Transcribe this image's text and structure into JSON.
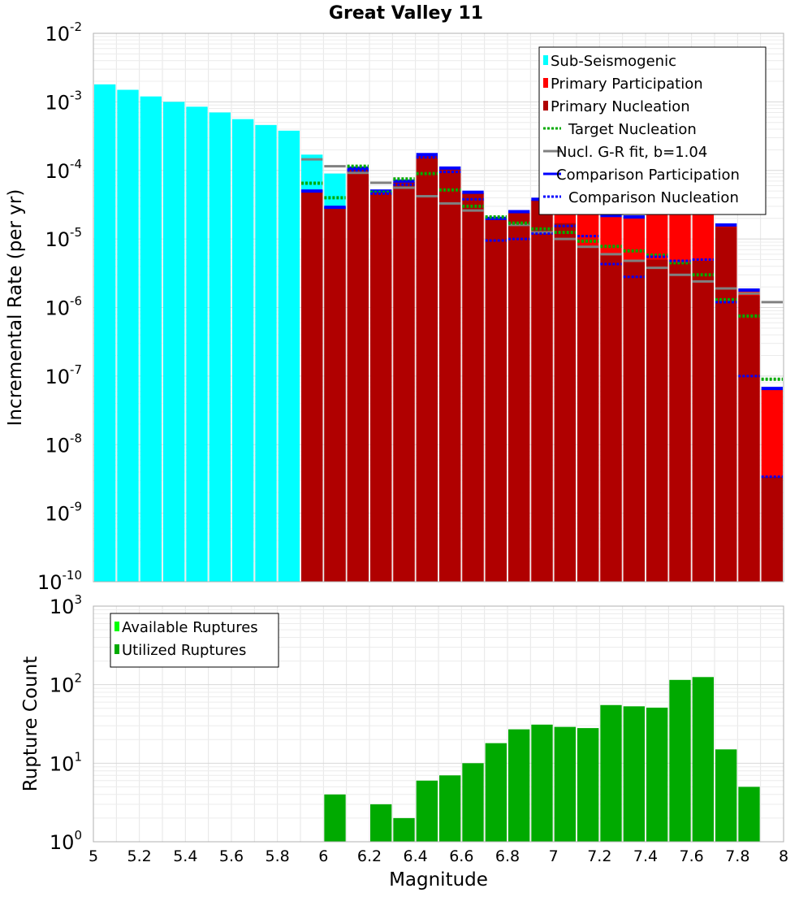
{
  "chart_data": [
    {
      "type": "bar",
      "title": "Great Valley 11",
      "xlabel": "",
      "ylabel": "Incremental Rate (per yr)",
      "yscale": "log",
      "ylim_exp": [
        -10,
        -2
      ],
      "xlim": [
        5,
        8
      ],
      "bin_width": 0.1,
      "legend_position": "top-right",
      "legend": [
        {
          "key": "sub",
          "label": "Sub-Seismogenic",
          "color": "#00ffff",
          "style": "box"
        },
        {
          "key": "partic",
          "label": "Primary Participation",
          "color": "#ff0000",
          "style": "box"
        },
        {
          "key": "nucl",
          "label": "Primary Nucleation",
          "color": "#b00000",
          "style": "box"
        },
        {
          "key": "target",
          "label": "Target Nucleation",
          "color": "#00aa00",
          "style": "dotted"
        },
        {
          "key": "gr",
          "label": "Nucl. G-R fit, b=1.04",
          "color": "#808080",
          "style": "solid"
        },
        {
          "key": "cpart",
          "label": "Comparison Participation",
          "color": "#0000ff",
          "style": "solid"
        },
        {
          "key": "cnucl",
          "label": "Comparison Nucleation",
          "color": "#0000ff",
          "style": "dotted"
        }
      ],
      "series": {
        "sub_seismogenic": {
          "x": [
            5.05,
            5.15,
            5.25,
            5.35,
            5.45,
            5.55,
            5.65,
            5.75,
            5.85,
            5.95,
            6.05
          ],
          "values": [
            0.0018,
            0.0015,
            0.0012,
            0.001,
            0.00085,
            0.0007,
            0.00056,
            0.00046,
            0.00038,
            0.00017,
            9e-05
          ]
        },
        "primary_participation": {
          "x": [
            5.95,
            6.05,
            6.15,
            6.25,
            6.35,
            6.45,
            6.55,
            6.65,
            6.75,
            6.85,
            6.95,
            7.05,
            7.15,
            7.25,
            7.35,
            7.45,
            7.55,
            7.65,
            7.75,
            7.85,
            7.95
          ],
          "values": [
            5e-05,
            2.9e-05,
            0.000105,
            4.9e-05,
            6.8e-05,
            0.000165,
            0.000105,
            4.7e-05,
            2e-05,
            2.4e-05,
            3.7e-05,
            4e-05,
            4.1e-05,
            2.1e-05,
            2.1e-05,
            5e-05,
            5.2e-05,
            5.7e-05,
            1.55e-05,
            1.7e-06,
            6.5e-08
          ]
        },
        "primary_nucleation": {
          "x": [
            5.95,
            6.05,
            6.15,
            6.25,
            6.35,
            6.45,
            6.55,
            6.65,
            6.75,
            6.85,
            6.95,
            7.05,
            7.15,
            7.25,
            7.35,
            7.45,
            7.55,
            7.65,
            7.75,
            7.85,
            7.95
          ],
          "values": [
            5e-05,
            2.9e-05,
            0.000105,
            4.9e-05,
            6.8e-05,
            0.000165,
            0.000105,
            4.7e-05,
            2e-05,
            2.4e-05,
            3.7e-05,
            1.7e-05,
            8e-06,
            6e-06,
            4.8e-06,
            5e-06,
            4.5e-06,
            4.8e-06,
            1.5e-05,
            1.5e-06,
            3.4e-09
          ]
        },
        "target_nucleation": {
          "x": [
            5.95,
            6.05,
            6.15,
            6.25,
            6.35,
            6.45,
            6.55,
            6.65,
            6.75,
            6.85,
            6.95,
            7.05,
            7.15,
            7.25,
            7.35,
            7.45,
            7.55,
            7.65,
            7.75,
            7.85,
            7.95
          ],
          "values": [
            6.5e-05,
            4e-05,
            0.000115,
            4.8e-05,
            7.5e-05,
            9e-05,
            5.2e-05,
            3e-05,
            2.1e-05,
            1.7e-05,
            1.4e-05,
            1.25e-05,
            9.3e-06,
            7.8e-06,
            6.7e-06,
            5.8e-06,
            4.5e-06,
            3e-06,
            1.3e-06,
            7.5e-07,
            9e-08
          ]
        },
        "gr_fit": {
          "x": [
            5.95,
            6.05,
            6.15,
            6.25,
            6.35,
            6.45,
            6.55,
            6.65,
            6.75,
            6.85,
            6.95,
            7.05,
            7.15,
            7.25,
            7.35,
            7.45,
            7.55,
            7.65,
            7.75,
            7.85,
            7.95
          ],
          "values": [
            0.000145,
            0.000115,
            9.2e-05,
            6.6e-05,
            5.6e-05,
            4.2e-05,
            3.3e-05,
            2.6e-05,
            2e-05,
            1.6e-05,
            1.25e-05,
            1e-05,
            7.7e-06,
            6e-06,
            4.8e-06,
            3.8e-06,
            3e-06,
            2.4e-06,
            1.9e-06,
            1.6e-06,
            1.2e-06
          ]
        },
        "comparison_participation": {
          "x": [
            5.95,
            6.05,
            6.15,
            6.25,
            6.35,
            6.45,
            6.55,
            6.65,
            6.75,
            6.85,
            6.95,
            7.05,
            7.15,
            7.25,
            7.35,
            7.45,
            7.55,
            7.65,
            7.75,
            7.85,
            7.95
          ],
          "values": [
            5e-05,
            2.9e-05,
            0.000108,
            5e-05,
            7e-05,
            0.00017,
            0.000108,
            4.8e-05,
            2e-05,
            2.5e-05,
            3.8e-05,
            4.2e-05,
            4.2e-05,
            2.2e-05,
            2.1e-05,
            5e-05,
            5.4e-05,
            6e-05,
            1.6e-05,
            1.8e-06,
            6.6e-08
          ]
        },
        "comparison_nucleation": {
          "x": [
            5.95,
            6.05,
            6.15,
            6.25,
            6.35,
            6.45,
            6.55,
            6.65,
            6.75,
            6.85,
            6.95,
            7.05,
            7.15,
            7.25,
            7.35,
            7.45,
            7.55,
            7.65,
            7.75,
            7.85,
            7.95
          ],
          "values": [
            5e-05,
            2.9e-05,
            0.0001,
            4.6e-05,
            6.2e-05,
            0.000155,
            9.5e-05,
            3.8e-05,
            9.5e-06,
            1e-05,
            1.2e-05,
            1.55e-05,
            1.1e-05,
            4.3e-06,
            2.8e-06,
            5.5e-06,
            4.8e-06,
            5e-06,
            1.2e-06,
            1e-07,
            3.4e-09
          ]
        }
      }
    },
    {
      "type": "bar",
      "title": "",
      "xlabel": "Magnitude",
      "ylabel": "Rupture Count",
      "yscale": "log",
      "ylim_exp": [
        0,
        3
      ],
      "xlim": [
        5,
        8
      ],
      "bin_width": 0.1,
      "legend_position": "top-left",
      "legend": [
        {
          "key": "avail",
          "label": "Available Ruptures",
          "color": "#00ff00",
          "style": "box"
        },
        {
          "key": "util",
          "label": "Utilized Ruptures",
          "color": "#00aa00",
          "style": "box"
        }
      ],
      "x_ticks": [
        "5",
        "5.2",
        "5.4",
        "5.6",
        "5.8",
        "6",
        "6.2",
        "6.4",
        "6.6",
        "6.8",
        "7",
        "7.2",
        "7.4",
        "7.6",
        "7.8",
        "8"
      ],
      "series": {
        "utilized": {
          "x": [
            6.05,
            6.25,
            6.35,
            6.45,
            6.55,
            6.65,
            6.75,
            6.85,
            6.95,
            7.05,
            7.15,
            7.25,
            7.35,
            7.45,
            7.55,
            7.65,
            7.75,
            7.85
          ],
          "values": [
            4,
            3,
            2,
            6,
            7,
            10,
            18,
            27,
            31,
            29,
            28,
            55,
            53,
            51,
            115,
            125,
            15,
            5
          ]
        }
      }
    }
  ]
}
